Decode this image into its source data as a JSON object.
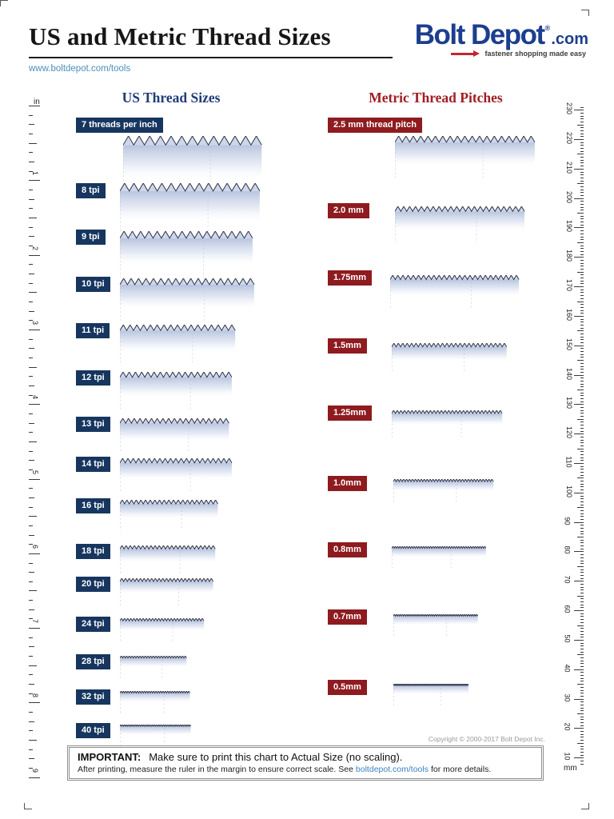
{
  "page": {
    "title": "US and Metric Thread Sizes",
    "url": "www.boltdepot.com/tools",
    "logo": {
      "name": "Bolt Depot",
      "reg": "®",
      "tld": ".com",
      "tagline": "fastener shopping  made easy"
    },
    "copyright": "Copyright © 2000-2017  Bolt Depot Inc.",
    "important": {
      "label": "IMPORTANT:",
      "line1": "Make sure to print this chart to Actual Size (no scaling).",
      "line2_pre": "After printing, measure the ruler in the margin to ensure correct scale.  See",
      "line2_link": "boltdepot.com/tools",
      "line2_post": "for more details."
    }
  },
  "columns": {
    "us_heading": "US Thread Sizes",
    "metric_heading": "Metric Thread Pitches"
  },
  "rulers": {
    "inch": {
      "unit": "in",
      "numbers": [
        1,
        2,
        3,
        4,
        5,
        6,
        7,
        8,
        9
      ]
    },
    "mm": {
      "unit": "mm",
      "numbers": [
        230,
        220,
        210,
        200,
        190,
        180,
        170,
        160,
        150,
        140,
        130,
        120,
        110,
        100,
        90,
        80,
        70,
        60,
        50,
        40,
        30,
        20,
        10
      ]
    }
  },
  "us_threads": [
    {
      "label": "7 threads per inch",
      "tpi": 7
    },
    {
      "label": "8 tpi",
      "tpi": 8
    },
    {
      "label": "9 tpi",
      "tpi": 9
    },
    {
      "label": "10 tpi",
      "tpi": 10
    },
    {
      "label": "11 tpi",
      "tpi": 11
    },
    {
      "label": "12 tpi",
      "tpi": 12
    },
    {
      "label": "13 tpi",
      "tpi": 13
    },
    {
      "label": "14 tpi",
      "tpi": 14
    },
    {
      "label": "16 tpi",
      "tpi": 16
    },
    {
      "label": "18 tpi",
      "tpi": 18
    },
    {
      "label": "20 tpi",
      "tpi": 20
    },
    {
      "label": "24 tpi",
      "tpi": 24
    },
    {
      "label": "28 tpi",
      "tpi": 28
    },
    {
      "label": "32 tpi",
      "tpi": 32
    },
    {
      "label": "40 tpi",
      "tpi": 40
    }
  ],
  "metric_threads": [
    {
      "label": "2.5 mm thread pitch",
      "pitch_mm": 2.5
    },
    {
      "label": "2.0 mm",
      "pitch_mm": 2.0
    },
    {
      "label": "1.75mm",
      "pitch_mm": 1.75
    },
    {
      "label": "1.5mm",
      "pitch_mm": 1.5
    },
    {
      "label": "1.25mm",
      "pitch_mm": 1.25
    },
    {
      "label": "1.0mm",
      "pitch_mm": 1.0
    },
    {
      "label": "0.8mm",
      "pitch_mm": 0.8
    },
    {
      "label": "0.7mm",
      "pitch_mm": 0.7
    },
    {
      "label": "0.5mm",
      "pitch_mm": 0.5
    }
  ],
  "colors": {
    "us_badge": "#17365f",
    "metric_badge": "#8e1b1f",
    "us_heading": "#1e3c78",
    "metric_heading": "#a01d22",
    "logo_blue": "#1c3e8e",
    "logo_red": "#c4262e",
    "link": "#4a90b8",
    "thread_line": "#2e3344",
    "thread_fill": "#cdd7ec"
  }
}
